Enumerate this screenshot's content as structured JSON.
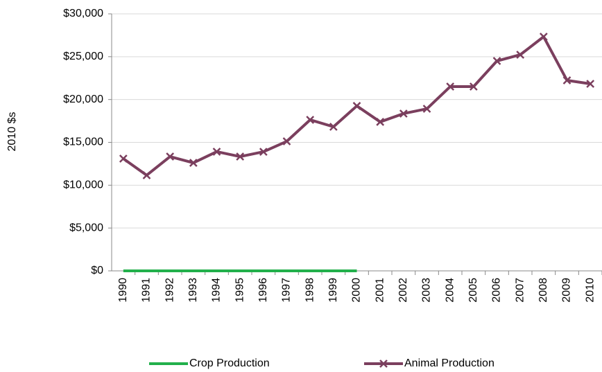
{
  "chart_data": {
    "type": "line",
    "y_label": "2010 $s",
    "categories": [
      "1990",
      "1991",
      "1992",
      "1993",
      "1994",
      "1995",
      "1996",
      "1997",
      "1998",
      "1999",
      "2000",
      "2001",
      "2002",
      "2003",
      "2004",
      "2005",
      "2006",
      "2007",
      "2008",
      "2009",
      "2010"
    ],
    "series": [
      {
        "name": "Crop Production",
        "color": "#22b04b",
        "marker": "none",
        "values": [
          0,
          0,
          0,
          0,
          0,
          0,
          0,
          0,
          0,
          0,
          0,
          null,
          null,
          null,
          null,
          null,
          null,
          null,
          null,
          null,
          null
        ]
      },
      {
        "name": "Animal Production",
        "color": "#7b3f5e",
        "marker": "x",
        "values": [
          13100,
          11160,
          13340,
          12610,
          13910,
          13340,
          13900,
          15120,
          17630,
          16820,
          19250,
          17390,
          18360,
          18920,
          21510,
          21510,
          24500,
          25230,
          27330,
          22240,
          21830
        ]
      }
    ],
    "ylim": [
      0,
      30000
    ],
    "yticks": [
      {
        "value": 0,
        "label": "$0"
      },
      {
        "value": 5000,
        "label": "$5,000"
      },
      {
        "value": 10000,
        "label": "$10,000"
      },
      {
        "value": 15000,
        "label": "$15,000"
      },
      {
        "value": 20000,
        "label": "$20,000"
      },
      {
        "value": 25000,
        "label": "$25,000"
      },
      {
        "value": 30000,
        "label": "$30,000"
      }
    ],
    "grid": true,
    "legend": "bottom"
  }
}
